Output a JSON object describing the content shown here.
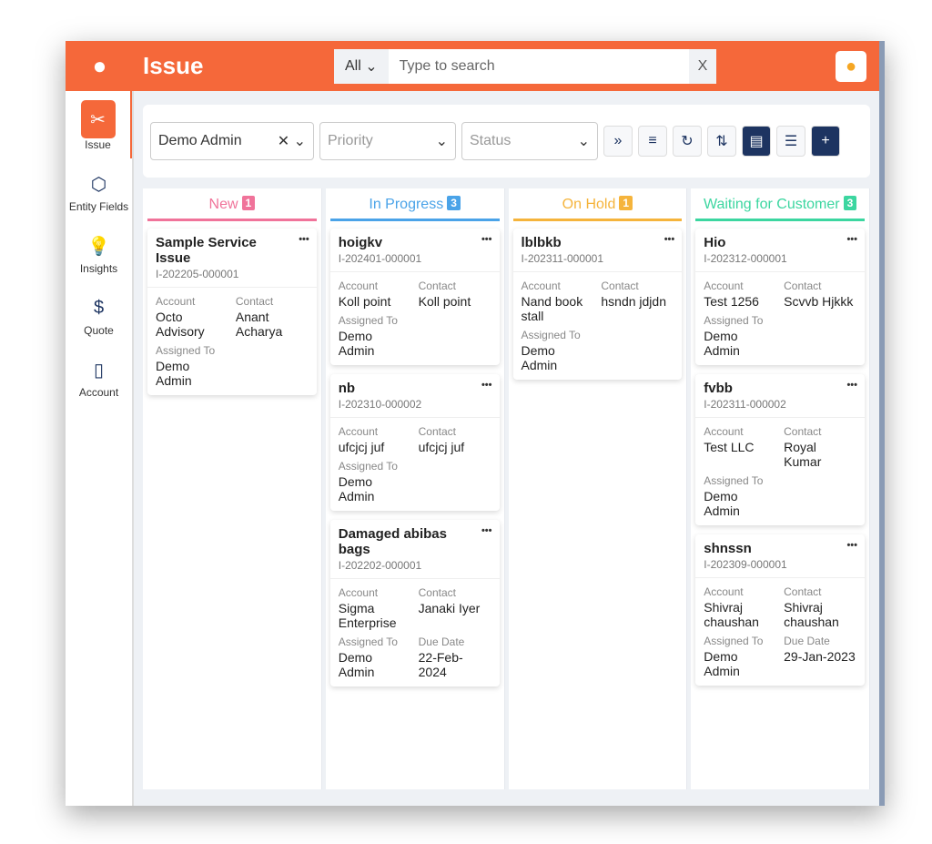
{
  "header": {
    "title": "Issue",
    "search_scope": "All",
    "search_placeholder": "Type to search",
    "clear": "X"
  },
  "sidebar": {
    "items": [
      {
        "label": "Issue",
        "icon": "tools-icon",
        "glyph": "✂"
      },
      {
        "label": "Entity Fields",
        "icon": "cube-icon",
        "glyph": "⬡"
      },
      {
        "label": "Insights",
        "icon": "lightbulb-icon",
        "glyph": "💡"
      },
      {
        "label": "Quote",
        "icon": "document-dollar-icon",
        "glyph": "$"
      },
      {
        "label": "Account",
        "icon": "map-icon",
        "glyph": "▯"
      }
    ]
  },
  "filters": {
    "assignee": "Demo Admin",
    "priority_placeholder": "Priority",
    "status_placeholder": "Status"
  },
  "colors": {
    "brand": "#f5683a",
    "new": "#f0739a",
    "in_progress": "#4aa3e8",
    "on_hold": "#f5b43c",
    "waiting": "#3cd6a0"
  },
  "labels": {
    "account": "Account",
    "contact": "Contact",
    "assigned": "Assigned To",
    "due": "Due Date"
  },
  "columns": [
    {
      "title": "New",
      "count": "1",
      "color": "#f0739a",
      "cards": [
        {
          "name": "Sample Service Issue",
          "id": "I-202205-000001",
          "account": "Octo Advisory",
          "contact": "Anant Acharya",
          "assigned": "Demo Admin"
        }
      ]
    },
    {
      "title": "In Progress",
      "count": "3",
      "color": "#4aa3e8",
      "cards": [
        {
          "name": "hoigkv",
          "id": "I-202401-000001",
          "account": "Koll point",
          "contact": "Koll point",
          "assigned": "Demo Admin"
        },
        {
          "name": "nb",
          "id": "I-202310-000002",
          "account": "ufcjcj juf",
          "contact": "ufcjcj juf",
          "assigned": "Demo Admin"
        },
        {
          "name": "Damaged abibas bags",
          "id": "I-202202-000001",
          "account": "Sigma Enterprise",
          "contact": "Janaki Iyer",
          "assigned": "Demo Admin",
          "due": "22-Feb-2024"
        }
      ]
    },
    {
      "title": "On Hold",
      "count": "1",
      "color": "#f5b43c",
      "cards": [
        {
          "name": "lblbkb",
          "id": "I-202311-000001",
          "account": "Nand book stall",
          "contact": "hsndn jdjdn",
          "assigned": "Demo Admin"
        }
      ]
    },
    {
      "title": "Waiting for Customer",
      "count": "3",
      "color": "#3cd6a0",
      "cards": [
        {
          "name": "Hio",
          "id": "I-202312-000001",
          "account": "Test 1256",
          "contact": "Scvvb Hjkkk",
          "assigned": "Demo Admin"
        },
        {
          "name": "fvbb",
          "id": "I-202311-000002",
          "account": "Test LLC",
          "contact": "Royal Kumar",
          "assigned": "Demo Admin"
        },
        {
          "name": "shnssn",
          "id": "I-202309-000001",
          "account": "Shivraj chaushan",
          "contact": "Shivraj chaushan",
          "assigned": "Demo Admin",
          "due": "29-Jan-2023"
        }
      ]
    }
  ]
}
